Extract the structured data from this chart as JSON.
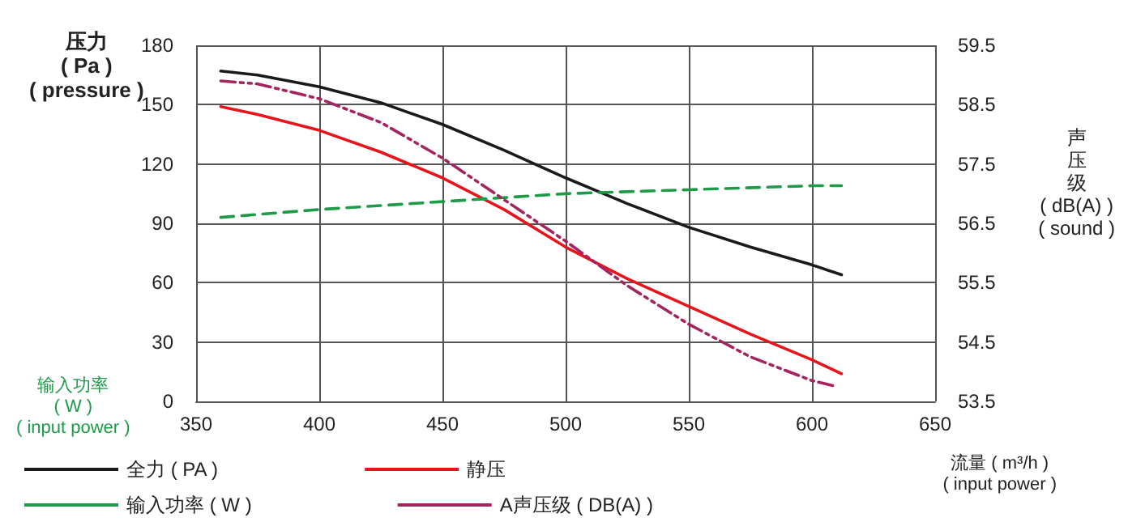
{
  "chart_data": {
    "type": "line",
    "ylabel": "压力\n( Pa )\n( pressure )",
    "y2label": "声压级\n( dB(A) )\n( sound )",
    "xlabel": "流量 ( m³/h )\n( input power )",
    "annotations": [
      "输入功率\n( W )\n( input power )"
    ],
    "xlim": [
      350,
      650
    ],
    "xticks": [
      350,
      400,
      450,
      500,
      550,
      600,
      650
    ],
    "ylim": [
      0,
      180
    ],
    "yticks": [
      0,
      30,
      60,
      90,
      120,
      150,
      180
    ],
    "y2lim": [
      53.5,
      59.5
    ],
    "y2ticks": [
      53.5,
      54.5,
      55.5,
      56.5,
      57.5,
      58.5,
      59.5
    ],
    "grid": true,
    "legend": "bottom",
    "marker": "none",
    "series": [
      {
        "name": "全力 ( PA )",
        "color": "#1a1a1a",
        "line_style": "solid",
        "x": [
          360,
          375,
          400,
          425,
          450,
          475,
          500,
          525,
          550,
          575,
          600,
          612
        ],
        "values": [
          167,
          165,
          159,
          151,
          140,
          127,
          113,
          100,
          88,
          78,
          69,
          64
        ]
      },
      {
        "name": "静压",
        "color": "#e8141c",
        "line_style": "solid",
        "x": [
          360,
          375,
          400,
          425,
          450,
          475,
          500,
          525,
          550,
          575,
          600,
          612
        ],
        "values": [
          149,
          145,
          137,
          126,
          113,
          97,
          78,
          62,
          48,
          34,
          21,
          14
        ]
      },
      {
        "name": "输入功率 ( W )",
        "color": "#1f9a48",
        "line_style": "dashed",
        "x": [
          360,
          400,
          450,
          500,
          550,
          600,
          612
        ],
        "values": [
          93,
          97,
          101,
          105,
          107,
          109,
          109
        ]
      },
      {
        "name": "A声压级 ( DB(A) )",
        "color": "#a3245e",
        "line_style": "dashdot",
        "axis": "y2",
        "x": [
          360,
          375,
          400,
          425,
          450,
          475,
          500,
          525,
          550,
          575,
          600,
          610
        ],
        "values": [
          58.9,
          58.85,
          58.6,
          58.2,
          57.6,
          56.9,
          56.2,
          55.45,
          54.8,
          54.25,
          53.85,
          53.75
        ]
      }
    ]
  }
}
